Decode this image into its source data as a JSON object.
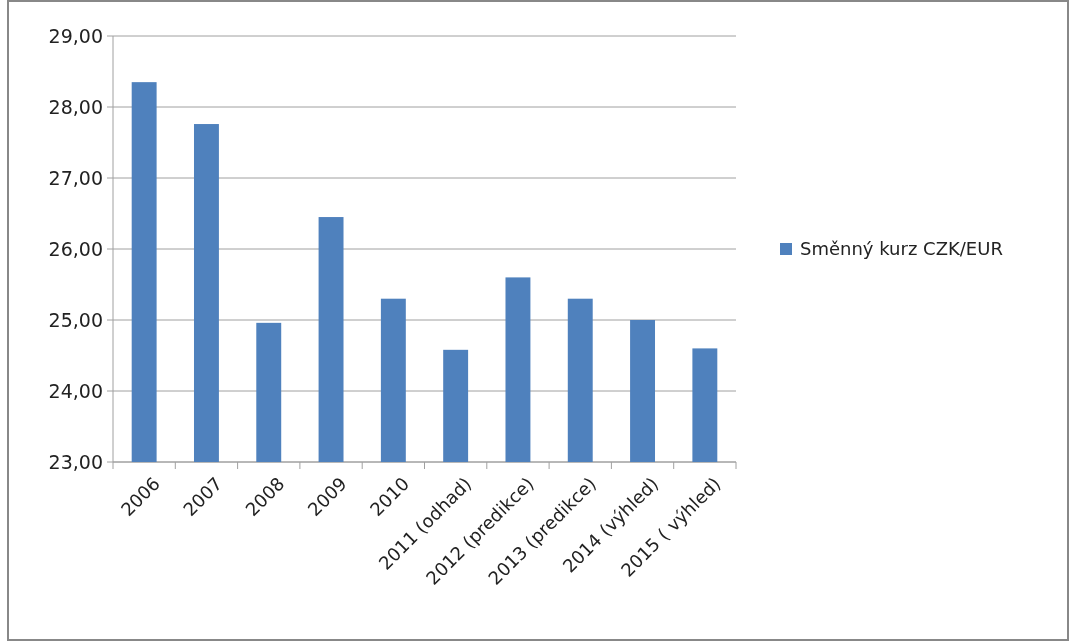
{
  "chart_data": {
    "type": "bar",
    "categories": [
      "2006",
      "2007",
      "2008",
      "2009",
      "2010",
      "2011 (odhad)",
      "2012 (predikce)",
      "2013 (predikce)",
      "2014 (výhled)",
      "2015 ( výhled)"
    ],
    "series": [
      {
        "name": "Směnný kurz CZK/EUR",
        "color": "#4f81bd",
        "values": [
          28.35,
          27.76,
          24.96,
          26.45,
          25.3,
          24.58,
          25.6,
          25.3,
          25.0,
          24.6
        ]
      }
    ],
    "ylim": [
      23,
      29
    ],
    "yticks": [
      {
        "value": 23,
        "label": "23,00"
      },
      {
        "value": 24,
        "label": "24,00"
      },
      {
        "value": 25,
        "label": "25,00"
      },
      {
        "value": 26,
        "label": "26,00"
      },
      {
        "value": 27,
        "label": "27,00"
      },
      {
        "value": 28,
        "label": "28,00"
      },
      {
        "value": 29,
        "label": "29,00"
      }
    ],
    "grid": "y",
    "legend": "right"
  }
}
